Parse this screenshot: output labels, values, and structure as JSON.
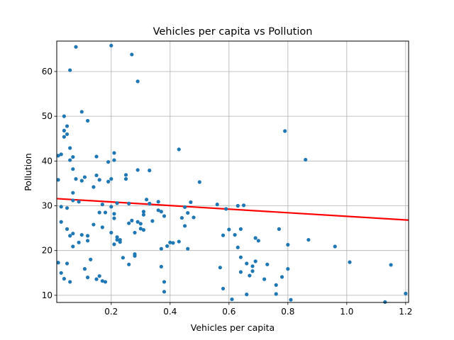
{
  "chart_data": {
    "type": "scatter",
    "title": "Vehicles per capita vs Pollution",
    "xlabel": "Vehicles per capita",
    "ylabel": "Pollution",
    "xlim": [
      0.015,
      1.21
    ],
    "ylim": [
      8.4,
      66.8
    ],
    "xticks": [
      0.2,
      0.4,
      0.6,
      0.8,
      1.0,
      1.2
    ],
    "xtick_labels": [
      "0.2",
      "0.4",
      "0.6",
      "0.8",
      "1.0",
      "1.2"
    ],
    "yticks": [
      10,
      20,
      30,
      40,
      50,
      60
    ],
    "ytick_labels": [
      "10",
      "20",
      "30",
      "40",
      "50",
      "60"
    ],
    "grid": true,
    "point_color": "#1f77b4",
    "trend_color": "#ff0000",
    "trend_line": {
      "x": [
        0.015,
        1.21
      ],
      "y": [
        31.6,
        26.8
      ]
    },
    "points": [
      [
        0.02,
        41.2
      ],
      [
        0.02,
        35.8
      ],
      [
        0.02,
        17.3
      ],
      [
        0.03,
        41.5
      ],
      [
        0.03,
        29.8
      ],
      [
        0.03,
        26.4
      ],
      [
        0.03,
        15.0
      ],
      [
        0.04,
        46.8
      ],
      [
        0.04,
        45.4
      ],
      [
        0.04,
        50.0
      ],
      [
        0.04,
        13.7
      ],
      [
        0.05,
        46.0
      ],
      [
        0.05,
        47.8
      ],
      [
        0.05,
        24.8
      ],
      [
        0.05,
        17.1
      ],
      [
        0.05,
        29.5
      ],
      [
        0.06,
        42.9
      ],
      [
        0.06,
        23.3
      ],
      [
        0.06,
        13.0
      ],
      [
        0.06,
        60.3
      ],
      [
        0.06,
        40.2
      ],
      [
        0.07,
        40.9
      ],
      [
        0.07,
        38.2
      ],
      [
        0.07,
        32.9
      ],
      [
        0.07,
        31.2
      ],
      [
        0.07,
        20.9
      ],
      [
        0.07,
        23.8
      ],
      [
        0.08,
        65.5
      ],
      [
        0.08,
        36.0
      ],
      [
        0.09,
        21.8
      ],
      [
        0.09,
        30.9
      ],
      [
        0.1,
        35.6
      ],
      [
        0.1,
        51.0
      ],
      [
        0.1,
        23.5
      ],
      [
        0.11,
        36.4
      ],
      [
        0.11,
        15.9
      ],
      [
        0.12,
        22.2
      ],
      [
        0.12,
        49.0
      ],
      [
        0.12,
        23.3
      ],
      [
        0.12,
        14.0
      ],
      [
        0.13,
        18.0
      ],
      [
        0.14,
        25.8
      ],
      [
        0.14,
        34.2
      ],
      [
        0.15,
        41.0
      ],
      [
        0.15,
        13.6
      ],
      [
        0.15,
        36.8
      ],
      [
        0.16,
        35.8
      ],
      [
        0.16,
        14.3
      ],
      [
        0.16,
        28.5
      ],
      [
        0.17,
        30.3
      ],
      [
        0.17,
        25.2
      ],
      [
        0.17,
        13.2
      ],
      [
        0.18,
        28.5
      ],
      [
        0.18,
        13.0
      ],
      [
        0.19,
        39.8
      ],
      [
        0.19,
        35.4
      ],
      [
        0.2,
        65.8
      ],
      [
        0.2,
        36.0
      ],
      [
        0.2,
        29.8
      ],
      [
        0.2,
        24.0
      ],
      [
        0.21,
        28.2
      ],
      [
        0.21,
        27.2
      ],
      [
        0.21,
        21.4
      ],
      [
        0.21,
        41.8
      ],
      [
        0.21,
        40.2
      ],
      [
        0.22,
        30.6
      ],
      [
        0.22,
        23.0
      ],
      [
        0.22,
        22.4
      ],
      [
        0.23,
        21.9
      ],
      [
        0.23,
        22.4
      ],
      [
        0.24,
        18.4
      ],
      [
        0.25,
        36.0
      ],
      [
        0.25,
        36.9
      ],
      [
        0.26,
        30.5
      ],
      [
        0.26,
        16.9
      ],
      [
        0.26,
        26.1
      ],
      [
        0.27,
        26.7
      ],
      [
        0.27,
        63.8
      ],
      [
        0.28,
        18.8
      ],
      [
        0.28,
        19.2
      ],
      [
        0.28,
        24.0
      ],
      [
        0.29,
        57.8
      ],
      [
        0.29,
        38.0
      ],
      [
        0.29,
        26.4
      ],
      [
        0.3,
        26.0
      ],
      [
        0.3,
        24.9
      ],
      [
        0.31,
        28.0
      ],
      [
        0.31,
        28.7
      ],
      [
        0.31,
        24.6
      ],
      [
        0.32,
        31.4
      ],
      [
        0.33,
        37.9
      ],
      [
        0.33,
        30.5
      ],
      [
        0.34,
        26.6
      ],
      [
        0.36,
        30.9
      ],
      [
        0.36,
        29.0
      ],
      [
        0.37,
        28.7
      ],
      [
        0.37,
        20.4
      ],
      [
        0.37,
        16.4
      ],
      [
        0.38,
        27.7
      ],
      [
        0.38,
        13.0
      ],
      [
        0.38,
        10.8
      ],
      [
        0.39,
        21.0
      ],
      [
        0.4,
        21.8
      ],
      [
        0.41,
        21.7
      ],
      [
        0.43,
        42.6
      ],
      [
        0.43,
        22.0
      ],
      [
        0.44,
        27.3
      ],
      [
        0.45,
        25.5
      ],
      [
        0.45,
        29.7
      ],
      [
        0.46,
        20.4
      ],
      [
        0.46,
        28.4
      ],
      [
        0.47,
        30.8
      ],
      [
        0.48,
        27.4
      ],
      [
        0.5,
        35.3
      ],
      [
        0.56,
        30.3
      ],
      [
        0.57,
        16.2
      ],
      [
        0.58,
        23.4
      ],
      [
        0.58,
        11.5
      ],
      [
        0.59,
        29.3
      ],
      [
        0.6,
        24.7
      ],
      [
        0.61,
        9.1
      ],
      [
        0.62,
        23.5
      ],
      [
        0.63,
        30.0
      ],
      [
        0.63,
        20.7
      ],
      [
        0.64,
        24.8
      ],
      [
        0.64,
        18.5
      ],
      [
        0.64,
        15.2
      ],
      [
        0.65,
        30.1
      ],
      [
        0.66,
        17.1
      ],
      [
        0.66,
        10.2
      ],
      [
        0.67,
        14.4
      ],
      [
        0.68,
        15.4
      ],
      [
        0.68,
        16.5
      ],
      [
        0.69,
        17.6
      ],
      [
        0.69,
        22.8
      ],
      [
        0.7,
        22.2
      ],
      [
        0.72,
        13.6
      ],
      [
        0.73,
        16.9
      ],
      [
        0.76,
        12.3
      ],
      [
        0.76,
        10.3
      ],
      [
        0.77,
        24.8
      ],
      [
        0.78,
        14.1
      ],
      [
        0.79,
        46.7
      ],
      [
        0.8,
        21.3
      ],
      [
        0.8,
        15.9
      ],
      [
        0.81,
        9.0
      ],
      [
        0.86,
        40.3
      ],
      [
        0.87,
        22.4
      ],
      [
        0.96,
        20.9
      ],
      [
        1.01,
        17.4
      ],
      [
        1.12,
        8.0
      ],
      [
        1.13,
        8.5
      ],
      [
        1.15,
        16.8
      ],
      [
        1.2,
        10.4
      ]
    ]
  }
}
